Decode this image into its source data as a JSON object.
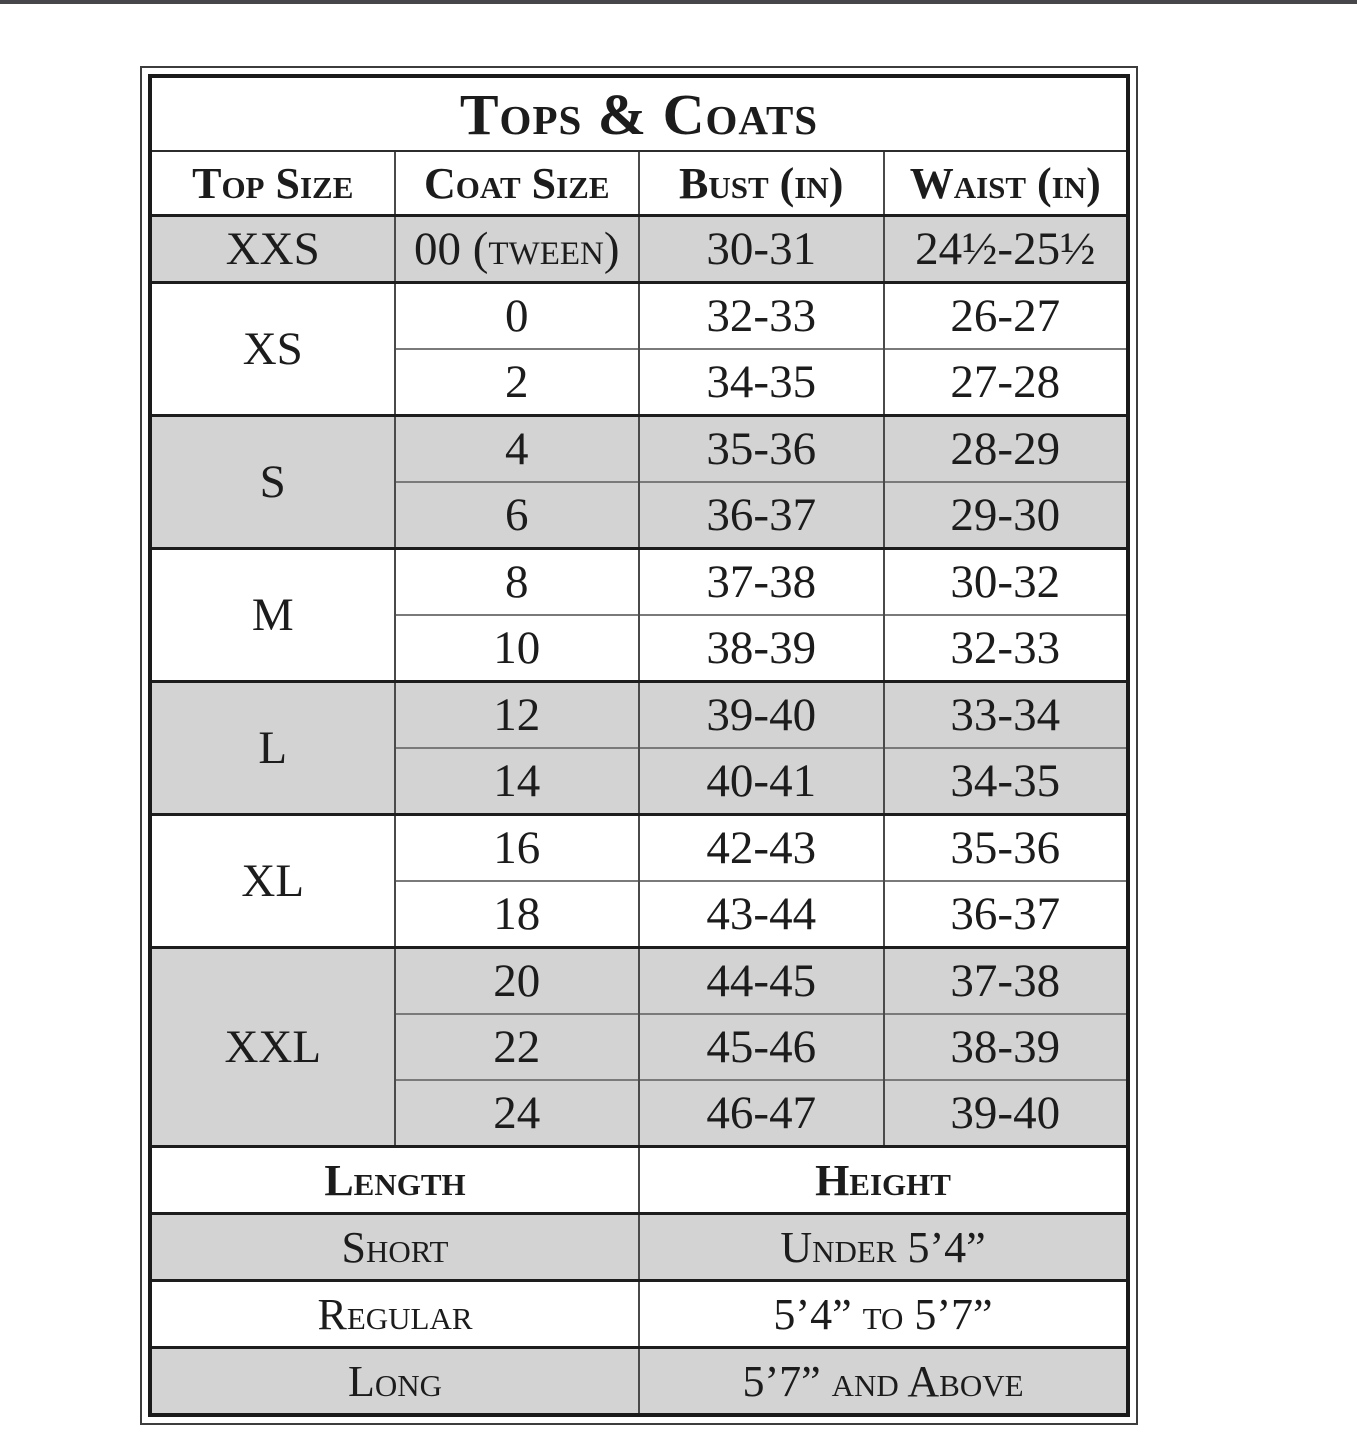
{
  "window": {
    "top_bar_color": "#47474b"
  },
  "title": "Tops & Coats",
  "colors": {
    "shaded_row": "#d3d3d3",
    "text": "#1c1c1c",
    "border_dark": "#1d1d1d",
    "border_mid": "#4a4a4a",
    "border_light": "#7a7a7a"
  },
  "size_table": {
    "headers": [
      "Top Size",
      "Coat Size",
      "Bust (in)",
      "Waist (in)"
    ],
    "groups": [
      {
        "top_size": "XXS",
        "shaded": true,
        "rows": [
          {
            "coat_size": "00 (tween)",
            "bust": "30-31",
            "waist": "24½-25½"
          }
        ]
      },
      {
        "top_size": "XS",
        "shaded": false,
        "rows": [
          {
            "coat_size": "0",
            "bust": "32-33",
            "waist": "26-27"
          },
          {
            "coat_size": "2",
            "bust": "34-35",
            "waist": "27-28"
          }
        ]
      },
      {
        "top_size": "S",
        "shaded": true,
        "rows": [
          {
            "coat_size": "4",
            "bust": "35-36",
            "waist": "28-29"
          },
          {
            "coat_size": "6",
            "bust": "36-37",
            "waist": "29-30"
          }
        ]
      },
      {
        "top_size": "M",
        "shaded": false,
        "rows": [
          {
            "coat_size": "8",
            "bust": "37-38",
            "waist": "30-32"
          },
          {
            "coat_size": "10",
            "bust": "38-39",
            "waist": "32-33"
          }
        ]
      },
      {
        "top_size": "L",
        "shaded": true,
        "rows": [
          {
            "coat_size": "12",
            "bust": "39-40",
            "waist": "33-34"
          },
          {
            "coat_size": "14",
            "bust": "40-41",
            "waist": "34-35"
          }
        ]
      },
      {
        "top_size": "XL",
        "shaded": false,
        "rows": [
          {
            "coat_size": "16",
            "bust": "42-43",
            "waist": "35-36"
          },
          {
            "coat_size": "18",
            "bust": "43-44",
            "waist": "36-37"
          }
        ]
      },
      {
        "top_size": "XXL",
        "shaded": true,
        "rows": [
          {
            "coat_size": "20",
            "bust": "44-45",
            "waist": "37-38"
          },
          {
            "coat_size": "22",
            "bust": "45-46",
            "waist": "38-39"
          },
          {
            "coat_size": "24",
            "bust": "46-47",
            "waist": "39-40"
          }
        ]
      }
    ]
  },
  "length_table": {
    "headers": [
      "Length",
      "Height"
    ],
    "rows": [
      {
        "length": "Short",
        "height": "Under 5’4”",
        "shaded": true
      },
      {
        "length": "Regular",
        "height": "5’4” to 5’7”",
        "shaded": false
      },
      {
        "length": "Long",
        "height": "5’7” and Above",
        "shaded": true
      }
    ]
  }
}
